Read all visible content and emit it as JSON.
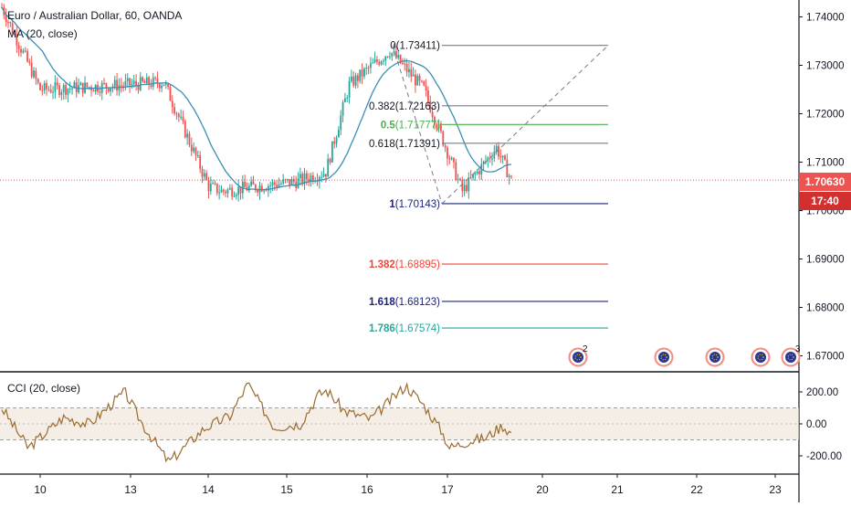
{
  "header": {
    "title": "Euro / Australian Dollar, 60, OANDA",
    "indicator": "MA (20, close)"
  },
  "cci_panel": {
    "title": "CCI (20, close)"
  },
  "price_tags": {
    "last_price": "1.70630",
    "countdown": "17:40"
  },
  "colors": {
    "up": "#26a69a",
    "down": "#ef5350",
    "ma": "#3a8fb7",
    "cci": "#9c6b2f",
    "last_price": "#ef5350",
    "countdown": "#d32f2f",
    "fib_neutral": "#787b86",
    "fib_green": "#4caf50",
    "fib_red": "#f44336",
    "fib_navy": "#1a237e",
    "fib_teal": "#26a69a"
  },
  "chart_data": [
    {
      "type": "candlestick",
      "title": "Euro / Australian Dollar, 60, OANDA",
      "x_ticks": [
        "10",
        "13",
        "14",
        "15",
        "16",
        "17",
        "20",
        "21",
        "22",
        "23"
      ],
      "y_ticks": [
        "1.74000",
        "1.73000",
        "1.72000",
        "1.71000",
        "1.70000",
        "1.69000",
        "1.68000",
        "1.67000"
      ],
      "ylim": [
        1.664,
        1.744
      ],
      "last_price": 1.7063,
      "ohlc_anchors": [
        [
          "10",
          1.742
        ],
        [
          "10",
          1.725
        ],
        [
          "13",
          1.726
        ],
        [
          "13",
          1.7265
        ],
        [
          "14",
          1.705
        ],
        [
          "14",
          1.704
        ],
        [
          "15",
          1.706
        ],
        [
          "15",
          1.708
        ],
        [
          "16",
          1.726
        ],
        [
          "16",
          1.733
        ],
        [
          "17",
          1.725
        ],
        [
          "17",
          1.704
        ],
        [
          "17",
          1.713
        ],
        [
          "17",
          1.7063
        ]
      ],
      "series": [
        {
          "name": "MA (20, close)",
          "type": "line"
        }
      ],
      "fibonacci": [
        {
          "label": "0(1.73411)",
          "level": 1.73411,
          "color": "#787b86"
        },
        {
          "label": "0.382(1.72163)",
          "level": 1.72163,
          "color": "#787b86"
        },
        {
          "label": "0.5(1.71777)",
          "level": 1.71777,
          "color": "#4caf50"
        },
        {
          "label": "0.618(1.71391)",
          "level": 1.71391,
          "color": "#787b86"
        },
        {
          "label": "1(1.70143)",
          "level": 1.70143,
          "color": "#1a237e"
        },
        {
          "label": "1.382(1.68895)",
          "level": 1.68895,
          "color": "#f44336"
        },
        {
          "label": "1.618(1.68123)",
          "level": 1.68123,
          "color": "#1a237e"
        },
        {
          "label": "1.786(1.67574)",
          "level": 1.67574,
          "color": "#26a69a"
        }
      ],
      "event_markers": [
        "2",
        "",
        "",
        "",
        "3"
      ]
    },
    {
      "type": "line",
      "title": "CCI (20, close)",
      "y_ticks": [
        "200.00",
        "0.00",
        "-200.00"
      ],
      "ylim": [
        -300,
        300
      ],
      "band": [
        -100,
        100
      ],
      "anchors": [
        [
          0,
          100
        ],
        [
          3,
          -150
        ],
        [
          7,
          40
        ],
        [
          10,
          0
        ],
        [
          14,
          200
        ],
        [
          16,
          0
        ],
        [
          19,
          -240
        ],
        [
          23,
          -30
        ],
        [
          26,
          50
        ],
        [
          28,
          250
        ],
        [
          31,
          -20
        ],
        [
          34,
          0
        ],
        [
          36,
          180
        ],
        [
          37,
          210
        ],
        [
          39,
          80
        ],
        [
          42,
          30
        ],
        [
          46,
          240
        ],
        [
          48,
          120
        ],
        [
          50,
          -40
        ],
        [
          51,
          -150
        ],
        [
          53,
          -110
        ],
        [
          55,
          -90
        ],
        [
          57,
          -10
        ],
        [
          58,
          -60
        ]
      ]
    }
  ]
}
